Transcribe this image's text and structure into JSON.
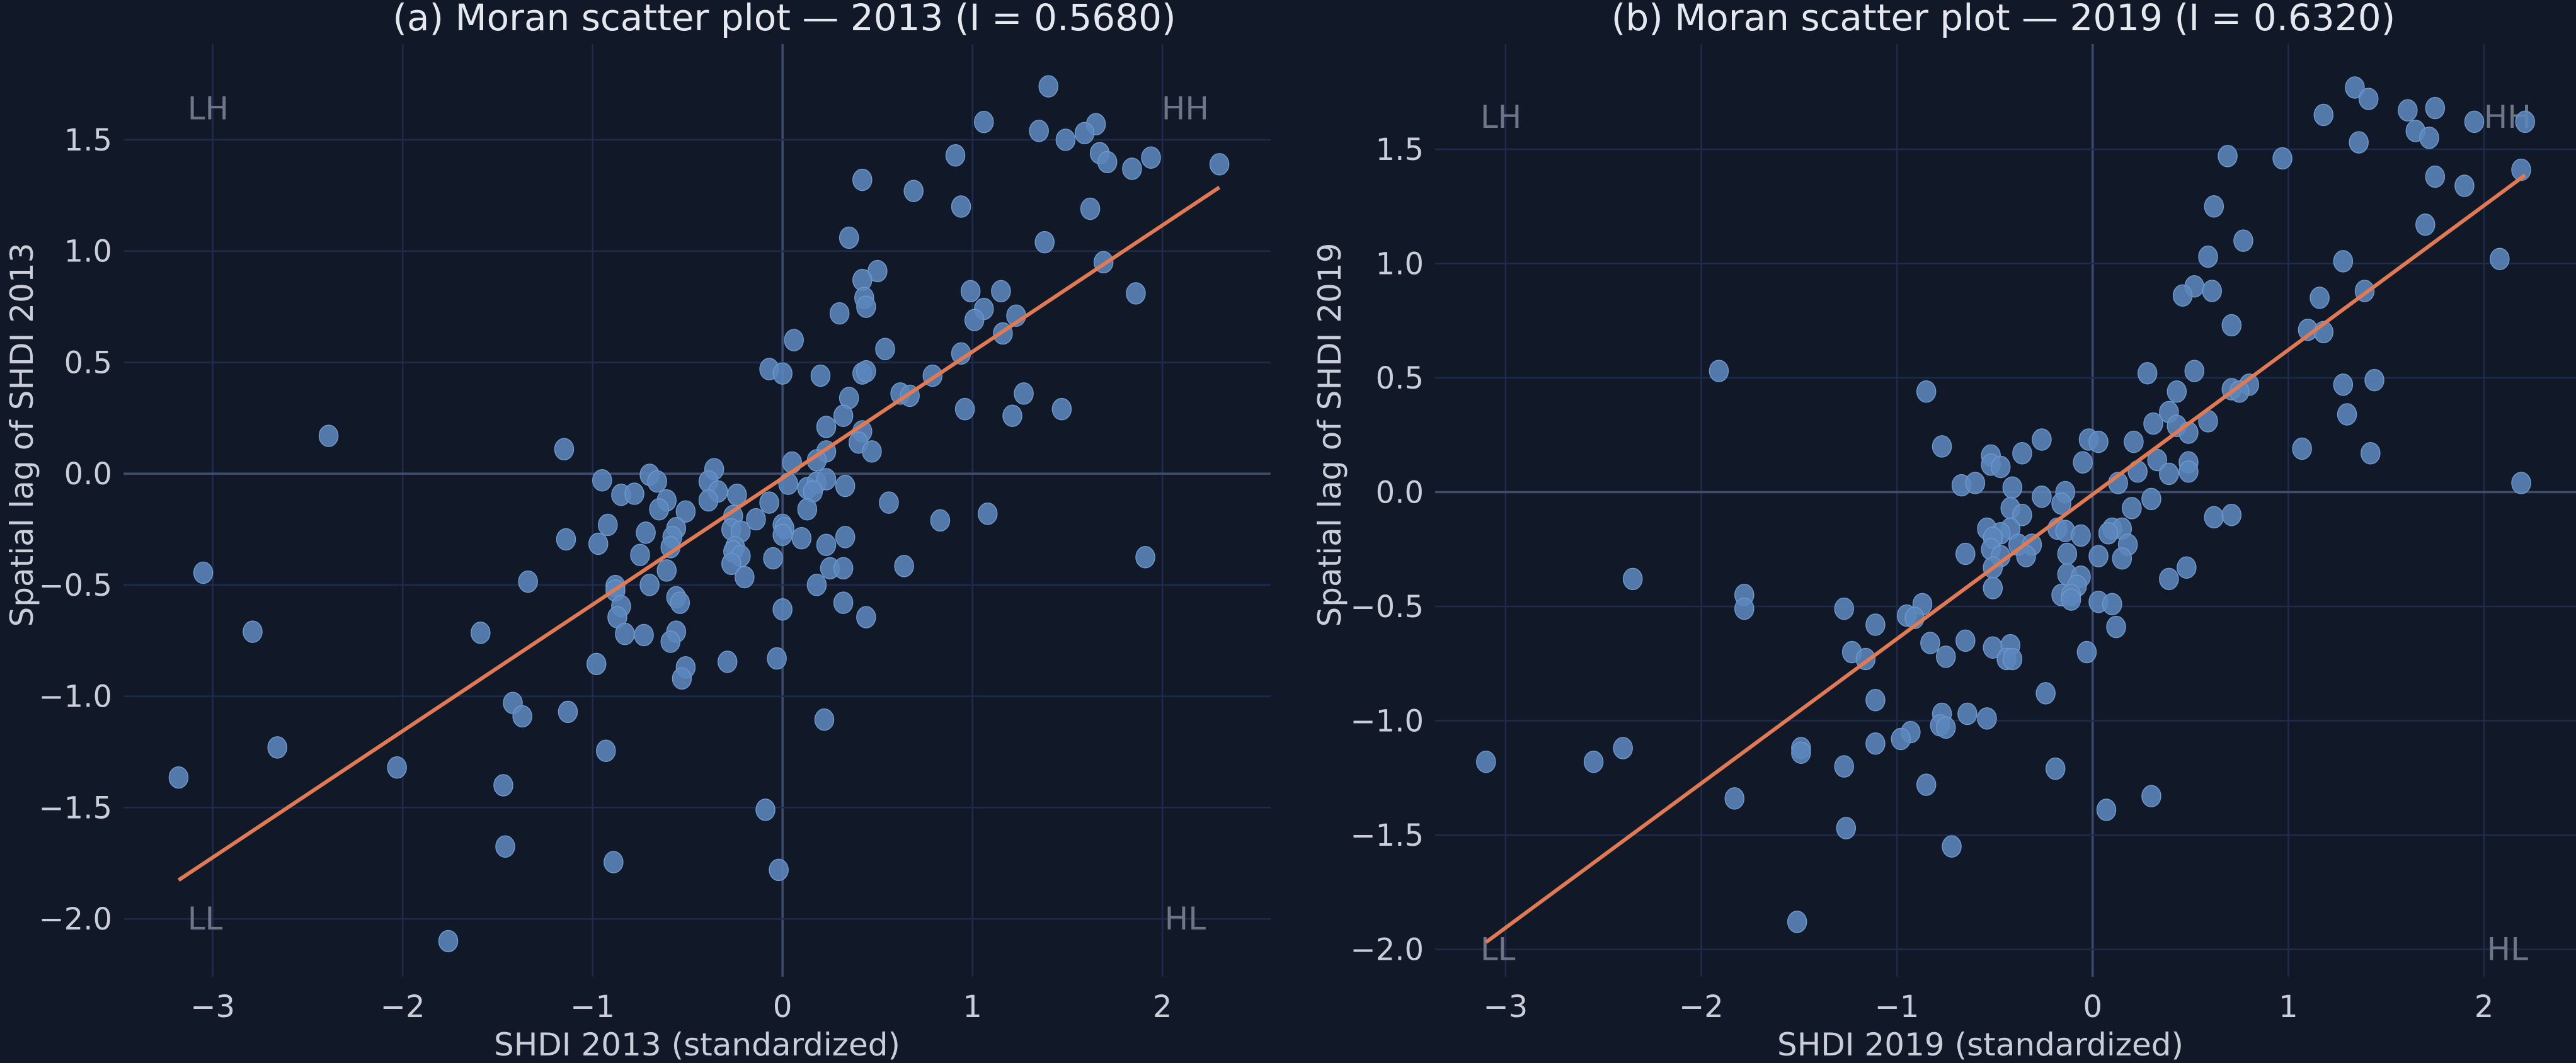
{
  "colors": {
    "background": "#111827",
    "points": "#5b86bd",
    "regression": "#e07a55",
    "grid": "#1f2b4d"
  },
  "chart_data": [
    {
      "type": "scatter",
      "title": "(a) Moran scatter plot — 2013 (I = 0.5680)",
      "xlabel": "SHDI 2013 (standardized)",
      "ylabel": "Spatial lag of SHDI 2013",
      "morans_i": 0.568,
      "xlim": [
        -3.47,
        2.57
      ],
      "ylim": [
        -2.26,
        1.93
      ],
      "xticks": [
        -3,
        -2,
        -1,
        0,
        1,
        2
      ],
      "xtick_labels": [
        "−3",
        "−2",
        "−1",
        "0",
        "1",
        "2"
      ],
      "yticks": [
        -2,
        -1.5,
        -1,
        -0.5,
        0,
        0.5,
        1,
        1.5
      ],
      "ytick_labels": [
        "−2.0",
        "−1.5",
        "−1.0",
        "−0.5",
        "0.0",
        "0.5",
        "1.0",
        "1.5"
      ],
      "quadrant_labels": {
        "LH": "LH",
        "HH": "HH",
        "LL": "LL",
        "HL": "HL"
      },
      "regression": {
        "slope": 0.568,
        "intercept": -0.02,
        "x_range": [
          -3.18,
          2.3
        ]
      },
      "grid": true,
      "points": [
        [
          1.4,
          1.74
        ],
        [
          1.06,
          1.58
        ],
        [
          1.35,
          1.54
        ],
        [
          1.65,
          1.57
        ],
        [
          1.59,
          1.53
        ],
        [
          1.49,
          1.5
        ],
        [
          1.67,
          1.44
        ],
        [
          1.71,
          1.4
        ],
        [
          1.94,
          1.42
        ],
        [
          1.84,
          1.37
        ],
        [
          2.3,
          1.39
        ],
        [
          0.91,
          1.43
        ],
        [
          0.42,
          1.32
        ],
        [
          0.69,
          1.27
        ],
        [
          0.94,
          1.2
        ],
        [
          1.62,
          1.19
        ],
        [
          0.35,
          1.06
        ],
        [
          1.38,
          1.04
        ],
        [
          1.69,
          0.95
        ],
        [
          0.5,
          0.91
        ],
        [
          0.42,
          0.87
        ],
        [
          0.43,
          0.79
        ],
        [
          0.44,
          0.75
        ],
        [
          0.99,
          0.82
        ],
        [
          1.15,
          0.82
        ],
        [
          1.86,
          0.81
        ],
        [
          0.3,
          0.72
        ],
        [
          1.06,
          0.74
        ],
        [
          1.01,
          0.69
        ],
        [
          1.23,
          0.71
        ],
        [
          1.16,
          0.63
        ],
        [
          0.06,
          0.6
        ],
        [
          0.54,
          0.56
        ],
        [
          0.94,
          0.54
        ],
        [
          -0.07,
          0.47
        ],
        [
          0.0,
          0.45
        ],
        [
          0.2,
          0.44
        ],
        [
          0.42,
          0.45
        ],
        [
          0.44,
          0.46
        ],
        [
          0.79,
          0.44
        ],
        [
          0.62,
          0.36
        ],
        [
          0.67,
          0.35
        ],
        [
          1.27,
          0.36
        ],
        [
          0.35,
          0.34
        ],
        [
          0.32,
          0.26
        ],
        [
          0.96,
          0.29
        ],
        [
          1.21,
          0.26
        ],
        [
          1.47,
          0.29
        ],
        [
          0.23,
          0.21
        ],
        [
          0.42,
          0.19
        ],
        [
          0.4,
          0.14
        ],
        [
          0.47,
          0.1
        ],
        [
          0.23,
          0.1
        ],
        [
          0.18,
          0.06
        ],
        [
          0.05,
          0.05
        ],
        [
          -1.15,
          0.11
        ],
        [
          -2.39,
          0.17
        ],
        [
          -0.36,
          0.02
        ],
        [
          -0.7,
          -0.005
        ],
        [
          -0.66,
          -0.035
        ],
        [
          -0.95,
          -0.03
        ],
        [
          -0.39,
          -0.035
        ],
        [
          0.03,
          -0.045
        ],
        [
          0.13,
          -0.065
        ],
        [
          0.18,
          -0.04
        ],
        [
          0.23,
          -0.025
        ],
        [
          0.33,
          -0.055
        ],
        [
          0.16,
          -0.08
        ],
        [
          -0.34,
          -0.08
        ],
        [
          -0.24,
          -0.095
        ],
        [
          -0.85,
          -0.095
        ],
        [
          -0.78,
          -0.09
        ],
        [
          -0.61,
          -0.12
        ],
        [
          -0.39,
          -0.12
        ],
        [
          -0.07,
          -0.13
        ],
        [
          0.56,
          -0.13
        ],
        [
          -0.65,
          -0.16
        ],
        [
          -0.51,
          -0.17
        ],
        [
          0.13,
          -0.16
        ],
        [
          -0.26,
          -0.19
        ],
        [
          -0.14,
          -0.205
        ],
        [
          0.83,
          -0.21
        ],
        [
          1.08,
          -0.18
        ],
        [
          -0.92,
          -0.23
        ],
        [
          -0.56,
          -0.245
        ],
        [
          0.0,
          -0.23
        ],
        [
          0.01,
          -0.245
        ],
        [
          -0.27,
          -0.25
        ],
        [
          -0.22,
          -0.26
        ],
        [
          -0.72,
          -0.265
        ],
        [
          -0.58,
          -0.285
        ],
        [
          -1.14,
          -0.295
        ],
        [
          0.0,
          -0.275
        ],
        [
          0.1,
          -0.29
        ],
        [
          0.33,
          -0.285
        ],
        [
          -0.97,
          -0.315
        ],
        [
          -0.59,
          -0.33
        ],
        [
          -0.25,
          -0.33
        ],
        [
          -0.26,
          -0.35
        ],
        [
          0.23,
          -0.32
        ],
        [
          -0.75,
          -0.365
        ],
        [
          -0.22,
          -0.37
        ],
        [
          -0.05,
          -0.38
        ],
        [
          -0.27,
          -0.405
        ],
        [
          -0.61,
          -0.435
        ],
        [
          0.25,
          -0.425
        ],
        [
          0.32,
          -0.425
        ],
        [
          0.64,
          -0.415
        ],
        [
          -0.2,
          -0.465
        ],
        [
          -1.34,
          -0.485
        ],
        [
          -0.7,
          -0.5
        ],
        [
          -0.88,
          -0.505
        ],
        [
          0.18,
          -0.5
        ],
        [
          -3.05,
          -0.445
        ],
        [
          -0.88,
          -0.525
        ],
        [
          -0.56,
          -0.555
        ],
        [
          -0.54,
          -0.58
        ],
        [
          0.32,
          -0.58
        ],
        [
          -0.85,
          -0.595
        ],
        [
          0.0,
          -0.61
        ],
        [
          -0.87,
          -0.645
        ],
        [
          0.44,
          -0.645
        ],
        [
          -2.79,
          -0.71
        ],
        [
          -1.59,
          -0.715
        ],
        [
          -0.83,
          -0.72
        ],
        [
          -0.73,
          -0.725
        ],
        [
          -0.56,
          -0.71
        ],
        [
          -0.59,
          -0.755
        ],
        [
          -0.98,
          -0.855
        ],
        [
          -0.29,
          -0.845
        ],
        [
          -0.03,
          -0.83
        ],
        [
          -0.51,
          -0.87
        ],
        [
          -0.53,
          -0.92
        ],
        [
          1.91,
          -0.375
        ],
        [
          -1.42,
          -1.03
        ],
        [
          -1.37,
          -1.09
        ],
        [
          -1.13,
          -1.07
        ],
        [
          0.22,
          -1.105
        ],
        [
          -2.66,
          -1.23
        ],
        [
          -0.93,
          -1.245
        ],
        [
          -2.03,
          -1.32
        ],
        [
          -3.18,
          -1.365
        ],
        [
          -1.47,
          -1.4
        ],
        [
          -0.09,
          -1.51
        ],
        [
          -1.46,
          -1.675
        ],
        [
          -0.89,
          -1.745
        ],
        [
          -0.02,
          -1.78
        ],
        [
          -1.76,
          -2.1
        ]
      ]
    },
    {
      "type": "scatter",
      "title": "(b) Moran scatter plot — 2019 (I = 0.6320)",
      "xlabel": "SHDI 2019 (standardized)",
      "ylabel": "Spatial lag of SHDI 2019",
      "morans_i": 0.632,
      "xlim": [
        -3.36,
        2.47
      ],
      "ylim": [
        -2.12,
        1.96
      ],
      "xticks": [
        -3,
        -2,
        -1,
        0,
        1,
        2
      ],
      "xtick_labels": [
        "−3",
        "−2",
        "−1",
        "0",
        "1",
        "2"
      ],
      "yticks": [
        -2,
        -1.5,
        -1,
        -0.5,
        0,
        0.5,
        1,
        1.5
      ],
      "ytick_labels": [
        "−2.0",
        "−1.5",
        "−1.0",
        "−0.5",
        "0.0",
        "0.5",
        "1.0",
        "1.5"
      ],
      "quadrant_labels": {
        "LH": "LH",
        "HH": "HH",
        "LL": "LL",
        "HL": "HL"
      },
      "regression": {
        "slope": 0.632,
        "intercept": -0.01,
        "x_range": [
          -3.1,
          2.21
        ]
      },
      "grid": true,
      "points": [
        [
          1.34,
          1.77
        ],
        [
          1.41,
          1.72
        ],
        [
          1.18,
          1.65
        ],
        [
          1.61,
          1.67
        ],
        [
          1.75,
          1.68
        ],
        [
          2.21,
          1.62
        ],
        [
          1.95,
          1.62
        ],
        [
          1.65,
          1.58
        ],
        [
          1.72,
          1.55
        ],
        [
          1.36,
          1.53
        ],
        [
          0.69,
          1.47
        ],
        [
          0.97,
          1.46
        ],
        [
          2.19,
          1.41
        ],
        [
          1.75,
          1.38
        ],
        [
          1.9,
          1.34
        ],
        [
          0.62,
          1.25
        ],
        [
          1.7,
          1.17
        ],
        [
          0.77,
          1.1
        ],
        [
          0.59,
          1.03
        ],
        [
          1.28,
          1.01
        ],
        [
          2.08,
          1.02
        ],
        [
          0.52,
          0.9
        ],
        [
          0.46,
          0.86
        ],
        [
          0.61,
          0.88
        ],
        [
          1.39,
          0.88
        ],
        [
          1.16,
          0.85
        ],
        [
          0.71,
          0.73
        ],
        [
          1.1,
          0.71
        ],
        [
          1.18,
          0.7
        ],
        [
          -1.91,
          0.53
        ],
        [
          0.28,
          0.52
        ],
        [
          0.52,
          0.53
        ],
        [
          1.44,
          0.49
        ],
        [
          -0.85,
          0.44
        ],
        [
          0.43,
          0.44
        ],
        [
          0.71,
          0.45
        ],
        [
          0.8,
          0.47
        ],
        [
          0.75,
          0.44
        ],
        [
          1.28,
          0.47
        ],
        [
          0.39,
          0.35
        ],
        [
          1.3,
          0.34
        ],
        [
          0.31,
          0.3
        ],
        [
          0.43,
          0.29
        ],
        [
          0.59,
          0.31
        ],
        [
          0.49,
          0.26
        ],
        [
          -0.26,
          0.23
        ],
        [
          -0.02,
          0.23
        ],
        [
          0.03,
          0.22
        ],
        [
          0.21,
          0.22
        ],
        [
          -0.77,
          0.2
        ],
        [
          -0.52,
          0.16
        ],
        [
          -0.36,
          0.17
        ],
        [
          1.07,
          0.19
        ],
        [
          1.42,
          0.17
        ],
        [
          -0.52,
          0.12
        ],
        [
          -0.47,
          0.11
        ],
        [
          -0.05,
          0.13
        ],
        [
          0.33,
          0.14
        ],
        [
          0.49,
          0.13
        ],
        [
          0.49,
          0.09
        ],
        [
          0.23,
          0.09
        ],
        [
          0.39,
          0.08
        ],
        [
          0.13,
          0.04
        ],
        [
          -0.67,
          0.03
        ],
        [
          -0.6,
          0.04
        ],
        [
          -0.41,
          0.02
        ],
        [
          2.19,
          0.04
        ],
        [
          -0.14,
          0.0
        ],
        [
          -0.26,
          -0.02
        ],
        [
          0.3,
          -0.03
        ],
        [
          -0.16,
          -0.05
        ],
        [
          -0.42,
          -0.07
        ],
        [
          0.2,
          -0.07
        ],
        [
          -0.36,
          -0.1
        ],
        [
          0.62,
          -0.11
        ],
        [
          0.71,
          -0.1
        ],
        [
          -0.54,
          -0.16
        ],
        [
          -0.42,
          -0.16
        ],
        [
          -0.18,
          -0.16
        ],
        [
          -0.14,
          -0.17
        ],
        [
          0.1,
          -0.16
        ],
        [
          0.15,
          -0.16
        ],
        [
          -0.47,
          -0.18
        ],
        [
          0.08,
          -0.18
        ],
        [
          -0.51,
          -0.2
        ],
        [
          -0.06,
          -0.19
        ],
        [
          -0.38,
          -0.23
        ],
        [
          -0.31,
          -0.23
        ],
        [
          0.18,
          -0.23
        ],
        [
          -0.52,
          -0.25
        ],
        [
          -0.65,
          -0.27
        ],
        [
          -0.47,
          -0.28
        ],
        [
          -0.34,
          -0.28
        ],
        [
          -0.13,
          -0.27
        ],
        [
          0.03,
          -0.28
        ],
        [
          0.15,
          -0.29
        ],
        [
          -0.51,
          -0.33
        ],
        [
          0.48,
          -0.33
        ],
        [
          -0.13,
          -0.36
        ],
        [
          -0.06,
          -0.37
        ],
        [
          0.39,
          -0.38
        ],
        [
          -0.08,
          -0.41
        ],
        [
          -0.51,
          -0.42
        ],
        [
          -0.16,
          -0.45
        ],
        [
          -0.11,
          -0.45
        ],
        [
          -0.11,
          -0.47
        ],
        [
          0.03,
          -0.48
        ],
        [
          -0.87,
          -0.49
        ],
        [
          0.1,
          -0.49
        ],
        [
          -1.27,
          -0.51
        ],
        [
          -1.78,
          -0.45
        ],
        [
          -1.78,
          -0.51
        ],
        [
          -0.95,
          -0.54
        ],
        [
          -0.91,
          -0.55
        ],
        [
          -1.11,
          -0.58
        ],
        [
          0.12,
          -0.59
        ],
        [
          -2.35,
          -0.38
        ],
        [
          -0.65,
          -0.65
        ],
        [
          -0.83,
          -0.66
        ],
        [
          -0.51,
          -0.68
        ],
        [
          -0.42,
          -0.67
        ],
        [
          -0.03,
          -0.7
        ],
        [
          -1.23,
          -0.7
        ],
        [
          -1.16,
          -0.73
        ],
        [
          -0.75,
          -0.72
        ],
        [
          -0.44,
          -0.73
        ],
        [
          -0.41,
          -0.73
        ],
        [
          -0.24,
          -0.88
        ],
        [
          -1.11,
          -0.91
        ],
        [
          -0.77,
          -0.97
        ],
        [
          -0.64,
          -0.97
        ],
        [
          -0.54,
          -0.99
        ],
        [
          -0.78,
          -1.02
        ],
        [
          -0.75,
          -1.03
        ],
        [
          -0.93,
          -1.05
        ],
        [
          -0.98,
          -1.08
        ],
        [
          -1.11,
          -1.1
        ],
        [
          -2.4,
          -1.12
        ],
        [
          -1.49,
          -1.12
        ],
        [
          -1.49,
          -1.14
        ],
        [
          -3.1,
          -1.18
        ],
        [
          -2.55,
          -1.18
        ],
        [
          -1.27,
          -1.2
        ],
        [
          -0.19,
          -1.21
        ],
        [
          -0.85,
          -1.28
        ],
        [
          -1.83,
          -1.34
        ],
        [
          0.3,
          -1.33
        ],
        [
          0.07,
          -1.39
        ],
        [
          -1.26,
          -1.47
        ],
        [
          -0.72,
          -1.55
        ],
        [
          -1.51,
          -1.88
        ]
      ]
    }
  ]
}
